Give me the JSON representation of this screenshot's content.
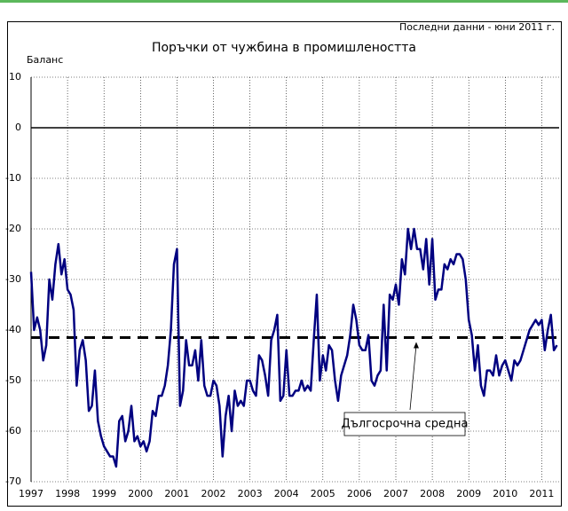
{
  "chart_data": {
    "type": "line",
    "title": "Поръчки от чужбина в промишлеността",
    "note": "Последни данни - юни 2011 г.",
    "y_label": "Баланс",
    "categories": [
      "1997",
      null,
      null,
      null,
      null,
      null,
      null,
      null,
      null,
      null,
      null,
      null,
      "1998",
      null,
      null,
      null,
      null,
      null,
      null,
      null,
      null,
      null,
      null,
      null,
      "1999",
      null,
      null,
      null,
      null,
      null,
      null,
      null,
      null,
      null,
      null,
      null,
      "2000",
      null,
      null,
      null,
      null,
      null,
      null,
      null,
      null,
      null,
      null,
      null,
      "2001",
      null,
      null,
      null,
      null,
      null,
      null,
      null,
      null,
      null,
      null,
      null,
      "2002",
      null,
      null,
      null,
      null,
      null,
      null,
      null,
      null,
      null,
      null,
      null,
      "2003",
      null,
      null,
      null,
      null,
      null,
      null,
      null,
      null,
      null,
      null,
      null,
      "2004",
      null,
      null,
      null,
      null,
      null,
      null,
      null,
      null,
      null,
      null,
      null,
      "2005",
      null,
      null,
      null,
      null,
      null,
      null,
      null,
      null,
      null,
      null,
      null,
      "2006",
      null,
      null,
      null,
      null,
      null,
      null,
      null,
      null,
      null,
      null,
      null,
      "2007",
      null,
      null,
      null,
      null,
      null,
      null,
      null,
      null,
      null,
      null,
      null,
      "2008",
      null,
      null,
      null,
      null,
      null,
      null,
      null,
      null,
      null,
      null,
      null,
      "2009",
      null,
      null,
      null,
      null,
      null,
      null,
      null,
      null,
      null,
      null,
      null,
      "2010",
      null,
      null,
      null,
      null,
      null,
      null,
      null,
      null,
      null,
      null,
      null,
      "2011",
      null,
      null,
      null,
      null,
      null
    ],
    "series": [
      {
        "color": "#000080",
        "values": [
          -28.5,
          -40,
          -37.5,
          -40,
          -46,
          -43,
          -30,
          -34,
          -27,
          -23,
          -29,
          -26,
          -32,
          -33,
          -36,
          -51,
          -44,
          -42,
          -46,
          -56,
          -55,
          -48,
          -58,
          -61,
          -63,
          -64,
          -65,
          -65,
          -67,
          -58,
          -57,
          -62,
          -60,
          -55,
          -62,
          -61,
          -63,
          -62,
          -64,
          -62,
          -56,
          -57,
          -53,
          -53,
          -51,
          -47,
          -40,
          -27,
          -24,
          -55,
          -52,
          -42,
          -47,
          -47,
          -44,
          -50,
          -42,
          -51,
          -53,
          -53,
          -50,
          -51,
          -55,
          -65,
          -57,
          -53,
          -60,
          -52,
          -55,
          -54,
          -55,
          -50,
          -50,
          -52,
          -53,
          -45,
          -46,
          -49,
          -53,
          -42,
          -40,
          -37,
          -54,
          -53,
          -44,
          -53,
          -53,
          -52,
          -52,
          -50,
          -52,
          -51,
          -52,
          -42,
          -33,
          -50,
          -45,
          -48,
          -43,
          -44,
          -50,
          -54,
          -49,
          -47,
          -45,
          -41,
          -35,
          -38,
          -43,
          -44,
          -44,
          -41,
          -50,
          -51,
          -49,
          -48,
          -35,
          -48,
          -33,
          -34,
          -31,
          -35,
          -26,
          -29,
          -20,
          -24,
          -20,
          -24,
          -24,
          -28,
          -22,
          -31,
          -22,
          -34,
          -32,
          -32,
          -27,
          -28,
          -26,
          -27,
          -25,
          -25,
          -26,
          -30,
          -38,
          -41,
          -48,
          -43,
          -51,
          -53,
          -48,
          -48,
          -49,
          -45,
          -49,
          -47,
          -46,
          -48,
          -50,
          -46,
          -47,
          -46,
          -44,
          -42,
          -40,
          -39,
          -38,
          -39,
          -38,
          -44,
          -40,
          -37,
          -44,
          -43
        ]
      }
    ],
    "reference_line": {
      "value": -41.5,
      "label": "Дългосрочна средна"
    },
    "ylim": [
      -70,
      10
    ],
    "yticks": [
      -70,
      -60,
      -50,
      -40,
      -30,
      -20,
      -10,
      0,
      10
    ],
    "grid": true
  }
}
